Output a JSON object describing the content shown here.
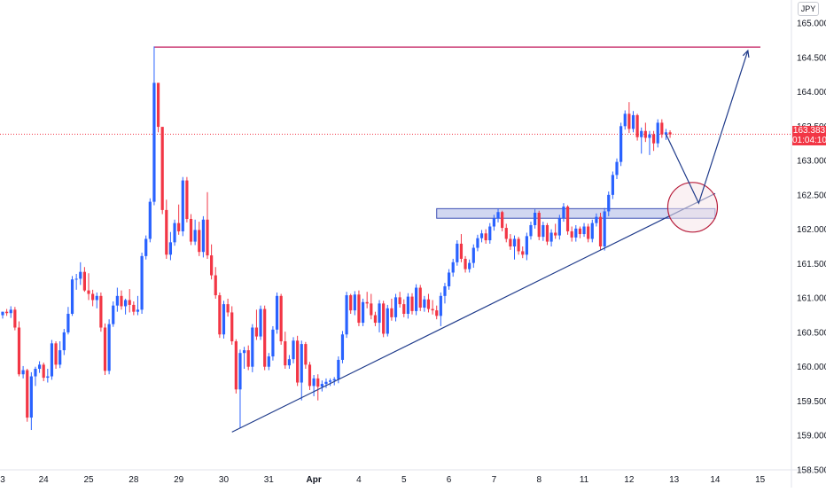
{
  "currency": "JPY",
  "last_price": {
    "value": "163.383",
    "countdown": "01:04:10",
    "color": "#f23645"
  },
  "colors": {
    "up": "#2962ff",
    "down": "#f23645",
    "trendline": "#1e3a8a",
    "resistance": "#c2185b",
    "zone_fill": "#b2bde8",
    "zone_border": "#3f51b5",
    "circle_fill": "#f5e6ea",
    "circle_border": "#b71c3a"
  },
  "chart_data": {
    "type": "candlestick",
    "y_axis": {
      "min": 158.5,
      "max": 165.0,
      "ticks": [
        "165.000",
        "164.500",
        "164.000",
        "163.500",
        "163.000",
        "162.500",
        "162.000",
        "161.500",
        "161.000",
        "160.500",
        "160.000",
        "159.500",
        "159.000",
        "158.500"
      ]
    },
    "x_axis": {
      "labels": [
        "3",
        "24",
        "25",
        "28",
        "29",
        "30",
        "31",
        "Apr",
        "4",
        "5",
        "6",
        "7",
        "8",
        "11",
        "12",
        "13",
        "14",
        "15"
      ]
    },
    "annotations": {
      "resistance_level": 164.65,
      "support_zone": [
        162.16,
        162.3
      ],
      "trendline_from_low": 159.05,
      "projected_target": 164.6
    },
    "candles": [
      [
        160.75,
        160.8,
        160.7,
        160.8
      ],
      [
        160.8,
        160.84,
        160.74,
        160.78
      ],
      [
        160.78,
        160.88,
        160.71,
        160.83
      ],
      [
        160.83,
        160.87,
        160.53,
        160.57
      ],
      [
        160.57,
        160.66,
        159.86,
        159.89
      ],
      [
        159.89,
        160.01,
        159.83,
        159.95
      ],
      [
        159.95,
        159.97,
        159.2,
        159.26
      ],
      [
        159.26,
        159.92,
        159.08,
        159.86
      ],
      [
        159.86,
        160.0,
        159.72,
        159.97
      ],
      [
        159.97,
        160.08,
        159.91,
        160.03
      ],
      [
        160.03,
        160.06,
        159.79,
        159.84
      ],
      [
        159.84,
        159.97,
        159.77,
        159.86
      ],
      [
        159.86,
        160.39,
        159.81,
        160.34
      ],
      [
        160.34,
        160.37,
        159.97,
        160.03
      ],
      [
        160.03,
        160.37,
        159.98,
        160.24
      ],
      [
        160.24,
        160.55,
        160.17,
        160.5
      ],
      [
        160.5,
        160.87,
        160.47,
        160.77
      ],
      [
        160.77,
        161.32,
        160.74,
        161.27
      ],
      [
        161.27,
        161.35,
        161.12,
        161.28
      ],
      [
        161.28,
        161.52,
        161.19,
        161.38
      ],
      [
        161.38,
        161.45,
        161.09,
        161.11
      ],
      [
        161.11,
        161.36,
        160.97,
        161.06
      ],
      [
        161.06,
        161.12,
        160.88,
        160.97
      ],
      [
        160.97,
        161.08,
        160.85,
        161.03
      ],
      [
        161.03,
        161.08,
        160.51,
        160.57
      ],
      [
        160.57,
        160.63,
        159.88,
        159.94
      ],
      [
        159.94,
        160.69,
        159.89,
        160.62
      ],
      [
        160.62,
        160.95,
        160.58,
        160.89
      ],
      [
        160.89,
        161.15,
        160.8,
        161.03
      ],
      [
        161.03,
        161.11,
        160.83,
        160.88
      ],
      [
        160.88,
        160.99,
        160.76,
        160.97
      ],
      [
        160.97,
        161.13,
        160.79,
        160.9
      ],
      [
        160.9,
        160.95,
        160.75,
        160.8
      ],
      [
        160.8,
        161.03,
        160.75,
        160.83
      ],
      [
        160.83,
        161.66,
        160.77,
        161.61
      ],
      [
        161.61,
        161.91,
        161.56,
        161.86
      ],
      [
        161.86,
        162.45,
        161.81,
        162.4
      ],
      [
        162.4,
        164.66,
        162.35,
        164.13
      ],
      [
        164.13,
        164.13,
        163.41,
        163.49
      ],
      [
        163.49,
        163.48,
        162.22,
        162.28
      ],
      [
        162.28,
        162.43,
        161.57,
        161.63
      ],
      [
        161.63,
        161.96,
        161.55,
        161.81
      ],
      [
        161.81,
        162.14,
        161.76,
        162.09
      ],
      [
        162.09,
        162.36,
        161.92,
        161.97
      ],
      [
        161.97,
        162.76,
        161.9,
        162.71
      ],
      [
        162.71,
        162.76,
        162.1,
        162.15
      ],
      [
        162.15,
        162.22,
        161.77,
        161.82
      ],
      [
        161.82,
        162.14,
        161.77,
        161.99
      ],
      [
        161.99,
        162.11,
        161.61,
        161.67
      ],
      [
        161.67,
        162.19,
        161.59,
        162.14
      ],
      [
        162.14,
        162.54,
        161.57,
        161.62
      ],
      [
        161.62,
        161.78,
        161.27,
        161.33
      ],
      [
        161.33,
        161.45,
        160.99,
        161.04
      ],
      [
        161.04,
        161.08,
        160.42,
        160.47
      ],
      [
        160.47,
        160.96,
        160.41,
        160.91
      ],
      [
        160.91,
        160.99,
        160.73,
        160.79
      ],
      [
        160.79,
        160.88,
        160.32,
        160.37
      ],
      [
        160.37,
        160.4,
        159.61,
        159.67
      ],
      [
        159.67,
        160.25,
        159.11,
        160.2
      ],
      [
        160.2,
        160.29,
        159.97,
        160.24
      ],
      [
        160.24,
        160.31,
        159.95,
        160.0
      ],
      [
        160.0,
        160.62,
        159.92,
        160.57
      ],
      [
        160.57,
        160.83,
        160.39,
        160.44
      ],
      [
        160.44,
        160.89,
        160.39,
        160.84
      ],
      [
        160.84,
        160.89,
        159.95,
        160.0
      ],
      [
        160.0,
        160.2,
        159.95,
        160.15
      ],
      [
        160.15,
        160.59,
        160.09,
        160.54
      ],
      [
        160.54,
        161.08,
        160.48,
        161.03
      ],
      [
        161.03,
        161.06,
        160.32,
        160.37
      ],
      [
        160.37,
        160.51,
        159.97,
        160.02
      ],
      [
        160.02,
        160.17,
        159.97,
        160.11
      ],
      [
        160.11,
        160.43,
        160.05,
        160.38
      ],
      [
        160.38,
        160.45,
        159.72,
        159.77
      ],
      [
        159.77,
        160.38,
        159.51,
        160.33
      ],
      [
        160.33,
        160.36,
        159.97,
        160.03
      ],
      [
        160.03,
        160.07,
        159.66,
        159.72
      ],
      [
        159.72,
        159.88,
        159.57,
        159.83
      ],
      [
        159.83,
        159.89,
        159.51,
        159.71
      ],
      [
        159.71,
        159.8,
        159.64,
        159.75
      ],
      [
        159.75,
        159.83,
        159.69,
        159.78
      ],
      [
        159.78,
        159.83,
        159.72,
        159.8
      ],
      [
        159.8,
        159.85,
        159.73,
        159.82
      ],
      [
        159.82,
        160.15,
        159.76,
        160.1
      ],
      [
        160.1,
        160.52,
        160.05,
        160.47
      ],
      [
        160.47,
        161.09,
        160.42,
        161.04
      ],
      [
        161.04,
        161.06,
        160.77,
        160.82
      ],
      [
        160.82,
        161.1,
        160.75,
        161.05
      ],
      [
        161.05,
        161.11,
        160.59,
        160.64
      ],
      [
        160.64,
        160.99,
        160.59,
        160.94
      ],
      [
        160.94,
        161.09,
        160.85,
        160.92
      ],
      [
        160.92,
        161.06,
        160.69,
        160.75
      ],
      [
        160.75,
        160.8,
        160.59,
        160.64
      ],
      [
        160.64,
        160.97,
        160.5,
        160.92
      ],
      [
        160.92,
        160.96,
        160.43,
        160.48
      ],
      [
        160.48,
        160.9,
        160.44,
        160.85
      ],
      [
        160.85,
        160.99,
        160.67,
        160.72
      ],
      [
        160.72,
        161.06,
        160.66,
        161.01
      ],
      [
        161.01,
        161.09,
        160.86,
        160.91
      ],
      [
        160.91,
        160.98,
        160.72,
        160.77
      ],
      [
        160.77,
        161.07,
        160.7,
        161.02
      ],
      [
        161.02,
        161.07,
        160.76,
        160.81
      ],
      [
        160.81,
        161.2,
        160.75,
        161.15
      ],
      [
        161.15,
        161.19,
        160.81,
        160.86
      ],
      [
        160.86,
        161.03,
        160.8,
        160.98
      ],
      [
        160.98,
        161.06,
        160.79,
        160.84
      ],
      [
        160.84,
        160.97,
        160.76,
        160.82
      ],
      [
        160.82,
        160.89,
        160.69,
        160.74
      ],
      [
        160.74,
        161.08,
        160.59,
        161.03
      ],
      [
        161.03,
        161.22,
        160.92,
        161.17
      ],
      [
        161.17,
        161.42,
        161.12,
        161.37
      ],
      [
        161.37,
        161.57,
        161.31,
        161.52
      ],
      [
        161.52,
        161.84,
        161.47,
        161.79
      ],
      [
        161.79,
        161.93,
        161.52,
        161.57
      ],
      [
        161.57,
        161.61,
        161.37,
        161.42
      ],
      [
        161.42,
        161.56,
        161.37,
        161.51
      ],
      [
        161.51,
        161.78,
        161.44,
        161.73
      ],
      [
        161.73,
        161.92,
        161.68,
        161.87
      ],
      [
        161.87,
        161.99,
        161.81,
        161.94
      ],
      [
        161.94,
        162.0,
        161.79,
        161.84
      ],
      [
        161.84,
        162.09,
        161.79,
        162.04
      ],
      [
        162.04,
        162.21,
        161.98,
        162.16
      ],
      [
        162.16,
        162.3,
        162.1,
        162.25
      ],
      [
        162.25,
        162.27,
        161.97,
        162.02
      ],
      [
        162.02,
        162.08,
        161.81,
        161.86
      ],
      [
        161.86,
        161.93,
        161.7,
        161.75
      ],
      [
        161.75,
        161.91,
        161.56,
        161.86
      ],
      [
        161.86,
        161.89,
        161.63,
        161.68
      ],
      [
        161.68,
        161.75,
        161.58,
        161.63
      ],
      [
        161.63,
        161.95,
        161.55,
        161.9
      ],
      [
        161.9,
        162.11,
        161.85,
        162.06
      ],
      [
        162.06,
        162.29,
        162.01,
        162.24
      ],
      [
        162.24,
        162.27,
        161.84,
        161.89
      ],
      [
        161.89,
        162.11,
        161.83,
        162.06
      ],
      [
        162.06,
        162.09,
        161.77,
        161.82
      ],
      [
        161.82,
        162.0,
        161.75,
        161.95
      ],
      [
        161.95,
        162.08,
        161.86,
        161.91
      ],
      [
        161.91,
        162.21,
        161.85,
        162.16
      ],
      [
        162.16,
        162.38,
        162.11,
        162.33
      ],
      [
        162.33,
        162.35,
        161.92,
        161.97
      ],
      [
        161.97,
        162.04,
        161.82,
        161.88
      ],
      [
        161.88,
        162.06,
        161.82,
        162.01
      ],
      [
        162.01,
        162.04,
        161.87,
        161.93
      ],
      [
        161.93,
        162.09,
        161.89,
        162.04
      ],
      [
        162.04,
        162.08,
        161.81,
        161.86
      ],
      [
        161.86,
        162.14,
        161.81,
        162.09
      ],
      [
        162.09,
        162.23,
        162.04,
        162.18
      ],
      [
        162.18,
        162.24,
        161.7,
        161.75
      ],
      [
        161.75,
        162.31,
        161.69,
        162.26
      ],
      [
        162.26,
        162.55,
        162.19,
        162.5
      ],
      [
        162.5,
        162.84,
        162.44,
        162.79
      ],
      [
        162.79,
        163.03,
        162.73,
        162.98
      ],
      [
        162.98,
        163.55,
        162.92,
        163.5
      ],
      [
        163.5,
        163.73,
        163.45,
        163.68
      ],
      [
        163.68,
        163.85,
        163.4,
        163.46
      ],
      [
        163.46,
        163.72,
        163.41,
        163.66
      ],
      [
        163.66,
        163.68,
        163.29,
        163.34
      ],
      [
        163.34,
        163.48,
        163.1,
        163.43
      ],
      [
        163.43,
        163.55,
        163.27,
        163.33
      ],
      [
        163.33,
        163.43,
        163.08,
        163.38
      ],
      [
        163.38,
        163.43,
        163.14,
        163.25
      ],
      [
        163.25,
        163.6,
        163.19,
        163.55
      ],
      [
        163.55,
        163.6,
        163.33,
        163.38
      ],
      [
        163.38,
        163.46,
        163.3,
        163.41
      ],
      [
        163.41,
        163.44,
        163.33,
        163.38
      ]
    ]
  },
  "projection_path": [
    {
      "bar": 162,
      "price": 163.383
    },
    {
      "bar": 170,
      "price": 162.38
    },
    {
      "bar": 182,
      "price": 164.6
    }
  ],
  "trendline": {
    "from_bar": 56,
    "from_price": 159.05,
    "to_bar": 174,
    "to_price": 162.52
  },
  "support_zone_bars": [
    106,
    174
  ],
  "circle": {
    "bar": 168.5,
    "price": 162.32
  },
  "date_label_bars": [
    0,
    10,
    21,
    32,
    43,
    54,
    65,
    76,
    87,
    98,
    109,
    120,
    131,
    142,
    153,
    164,
    174,
    185
  ]
}
